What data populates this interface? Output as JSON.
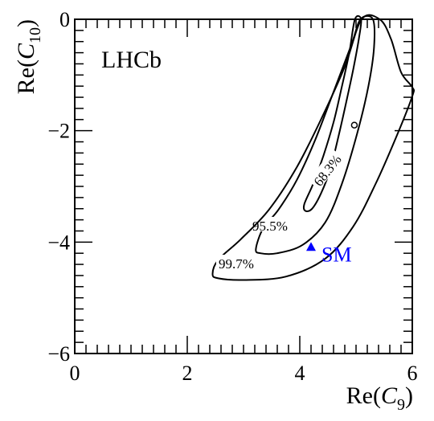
{
  "chart_data": {
    "type": "contour",
    "xlabel": {
      "main": "Re(",
      "var": "C",
      "sub": "9",
      "close": ")"
    },
    "ylabel": {
      "main": "Re(",
      "var": "C",
      "sub": "10",
      "close": ")"
    },
    "xlim": [
      0,
      6
    ],
    "ylim": [
      -6,
      0
    ],
    "x_ticks": [
      0,
      2,
      4,
      6
    ],
    "x_tick_labels": [
      "0",
      "2",
      "4",
      "6"
    ],
    "y_ticks": [
      0,
      -2,
      -4,
      -6
    ],
    "y_tick_labels": [
      "0",
      "−2",
      "−4",
      "−6"
    ],
    "experiment_label": "LHCb",
    "best_fit_point": {
      "x": 4.97,
      "y": -1.9
    },
    "sm_point": {
      "x": 4.2,
      "y": -4.1,
      "label": "SM",
      "color": "#0000ff"
    },
    "contours": [
      {
        "label": "68.3%",
        "label_pos": {
          "x": 4.5,
          "y": -2.72
        },
        "label_angle": -52,
        "points": [
          [
            4.08,
            -3.32
          ],
          [
            4.24,
            -2.95
          ],
          [
            4.42,
            -2.45
          ],
          [
            4.6,
            -1.85
          ],
          [
            4.75,
            -1.2
          ],
          [
            4.88,
            -0.6
          ],
          [
            4.98,
            0.0
          ],
          [
            5.09,
            0.0
          ],
          [
            5.05,
            -0.35
          ],
          [
            4.96,
            -0.85
          ],
          [
            4.84,
            -1.42
          ],
          [
            4.7,
            -2.05
          ],
          [
            4.54,
            -2.7
          ],
          [
            4.38,
            -3.12
          ],
          [
            4.22,
            -3.4
          ],
          [
            4.1,
            -3.44
          ]
        ]
      },
      {
        "label": "95.5%",
        "label_pos": {
          "x": 3.47,
          "y": -3.72
        },
        "label_angle": 0,
        "points": [
          [
            3.22,
            -4.12
          ],
          [
            3.35,
            -3.75
          ],
          [
            3.62,
            -3.42
          ],
          [
            3.95,
            -2.88
          ],
          [
            4.28,
            -2.15
          ],
          [
            4.62,
            -1.25
          ],
          [
            4.92,
            -0.45
          ],
          [
            5.08,
            0.0
          ],
          [
            5.3,
            0.0
          ],
          [
            5.32,
            -0.5
          ],
          [
            5.22,
            -1.2
          ],
          [
            5.02,
            -2.05
          ],
          [
            4.75,
            -2.95
          ],
          [
            4.45,
            -3.65
          ],
          [
            4.05,
            -4.05
          ],
          [
            3.6,
            -4.2
          ],
          [
            3.3,
            -4.2
          ]
        ]
      },
      {
        "label": "99.7%",
        "label_pos": {
          "x": 2.87,
          "y": -4.4
        },
        "label_angle": 0,
        "points": [
          [
            2.45,
            -4.57
          ],
          [
            2.55,
            -4.32
          ],
          [
            2.95,
            -3.95
          ],
          [
            3.45,
            -3.42
          ],
          [
            3.95,
            -2.65
          ],
          [
            4.4,
            -1.75
          ],
          [
            4.8,
            -0.85
          ],
          [
            5.1,
            0.0
          ],
          [
            5.42,
            0.0
          ],
          [
            5.62,
            -0.35
          ],
          [
            5.8,
            -0.95
          ],
          [
            6.0,
            -1.22
          ],
          [
            6.0,
            -1.38
          ],
          [
            5.72,
            -2.1
          ],
          [
            5.35,
            -2.95
          ],
          [
            4.95,
            -3.72
          ],
          [
            4.45,
            -4.3
          ],
          [
            3.75,
            -4.62
          ],
          [
            3.0,
            -4.68
          ],
          [
            2.55,
            -4.65
          ]
        ]
      }
    ]
  }
}
